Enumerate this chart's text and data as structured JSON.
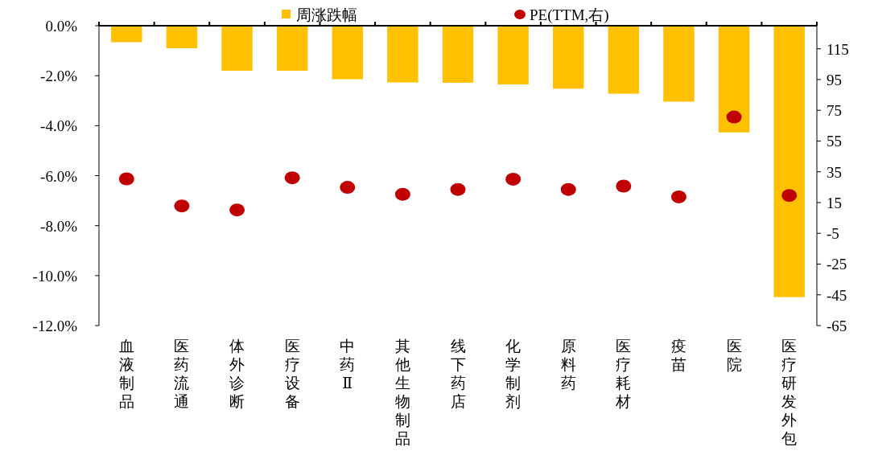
{
  "chart_data": {
    "type": "bar",
    "categories": [
      "血液制品",
      "医药流通",
      "体外诊断",
      "医疗设备",
      "中药Ⅱ",
      "其他生物制品",
      "线下药店",
      "化学制剂",
      "原料药",
      "医疗耗材",
      "疫苗",
      "医院",
      "医疗研发外包"
    ],
    "series": [
      {
        "name": "周涨跌幅",
        "color": "#ffc000",
        "values": [
          -0.66,
          -0.9,
          -1.8,
          -1.8,
          -2.14,
          -2.27,
          -2.28,
          -2.35,
          -2.52,
          -2.72,
          -3.04,
          -4.27,
          -10.86
        ]
      },
      {
        "name": "PE(TTM,右)",
        "type": "scatter",
        "axis": "y2",
        "color": "#c00000",
        "values": [
          30.4,
          12.8,
          10.2,
          31.1,
          24.9,
          20.4,
          23.5,
          30.2,
          23.5,
          25.7,
          18.7,
          70.6,
          19.6
        ]
      }
    ],
    "ylim": [
      -12,
      0
    ],
    "yticks": [
      {
        "value": 0,
        "label": "0.0%"
      },
      {
        "value": -2,
        "label": "-2.0%"
      },
      {
        "value": -4,
        "label": "-4.0%"
      },
      {
        "value": -6,
        "label": "-6.0%"
      },
      {
        "value": -8,
        "label": "-8.0%"
      },
      {
        "value": -10,
        "label": "-10.0%"
      },
      {
        "value": -12,
        "label": "-12.0%"
      }
    ],
    "y2lim": [
      -65,
      130
    ],
    "y2ticks": [
      115,
      95,
      75,
      55,
      35,
      15,
      -5,
      -25,
      -45,
      -65
    ],
    "marker": "circle",
    "legend": "top",
    "grid": false
  }
}
